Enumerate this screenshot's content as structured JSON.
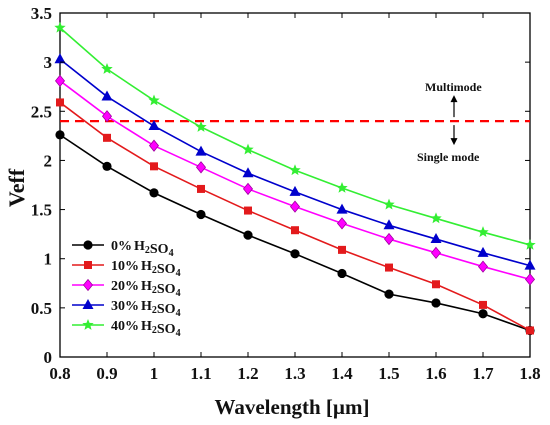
{
  "chart_data": {
    "type": "line",
    "xlabel": "Wavelength [µm]",
    "ylabel": "Veff",
    "xlim": [
      0.8,
      1.8
    ],
    "ylim": [
      0,
      3.5
    ],
    "x_ticks": [
      "0.8",
      "0.9",
      "1",
      "1.1",
      "1.2",
      "1.3",
      "1.4",
      "1.5",
      "1.6",
      "1.7",
      "1.8"
    ],
    "y_ticks": [
      "0",
      "0.5",
      "1",
      "1.5",
      "2",
      "2.5",
      "3",
      "3.5"
    ],
    "grid": false,
    "legend_position": "bottom-left",
    "x": [
      0.8,
      0.9,
      1.0,
      1.1,
      1.2,
      1.3,
      1.4,
      1.5,
      1.6,
      1.7,
      1.8
    ],
    "series": [
      {
        "name": "0%",
        "name_suffix": "H2SO4",
        "color": "#000000",
        "marker": "circle",
        "values": [
          2.26,
          1.94,
          1.67,
          1.45,
          1.24,
          1.05,
          0.85,
          0.64,
          0.55,
          0.44,
          0.27
        ]
      },
      {
        "name": "10%",
        "name_suffix": "H2SO4",
        "color": "#e31a1c",
        "marker": "square",
        "values": [
          2.59,
          2.23,
          1.94,
          1.71,
          1.49,
          1.29,
          1.09,
          0.91,
          0.74,
          0.53,
          0.27
        ]
      },
      {
        "name": "20%",
        "name_suffix": "H2SO4",
        "color": "#ff00ff",
        "marker": "diamond",
        "values": [
          2.81,
          2.45,
          2.15,
          1.93,
          1.71,
          1.53,
          1.36,
          1.2,
          1.06,
          0.92,
          0.79
        ]
      },
      {
        "name": "30%",
        "name_suffix": "H2SO4",
        "color": "#0000cc",
        "marker": "triangle",
        "values": [
          3.03,
          2.65,
          2.35,
          2.09,
          1.87,
          1.68,
          1.5,
          1.34,
          1.2,
          1.06,
          0.93
        ]
      },
      {
        "name": "40%",
        "name_suffix": "H2SO4",
        "color": "#33ee33",
        "marker": "star",
        "values": [
          3.35,
          2.93,
          2.61,
          2.34,
          2.11,
          1.9,
          1.72,
          1.55,
          1.41,
          1.27,
          1.14
        ]
      }
    ],
    "threshold": {
      "value": 2.4,
      "color": "#ff0000",
      "style": "dashed"
    },
    "annotations": {
      "multimode": "Multimode",
      "single_mode": "Single mode"
    }
  }
}
